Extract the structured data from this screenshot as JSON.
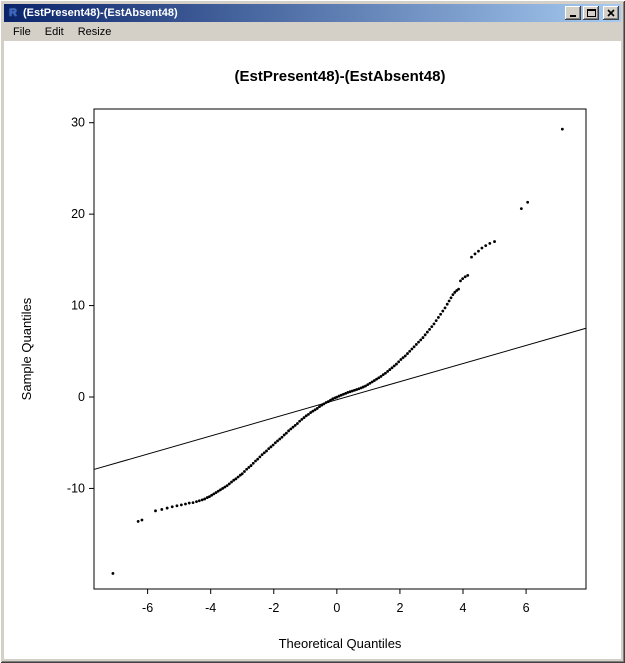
{
  "window": {
    "title": "(EstPresent48)-(EstAbsent48)",
    "icon_glyph": "R",
    "controls": [
      "minimize",
      "maximize",
      "close"
    ]
  },
  "menu": {
    "items": [
      {
        "label": "File"
      },
      {
        "label": "Edit"
      },
      {
        "label": "Resize"
      }
    ]
  },
  "colors": {
    "titlebar_gradient_start": "#0a246a",
    "titlebar_gradient_end": "#a6caf0",
    "window_chrome": "#d4d0c8",
    "plot_background": "#ffffff",
    "plot_foreground": "#000000"
  },
  "chart_data": {
    "type": "scatter",
    "title": "(EstPresent48)-(EstAbsent48)",
    "xlabel": "Theoretical Quantiles",
    "ylabel": "Sample Quantiles",
    "xlim": [
      -7.7,
      7.9
    ],
    "ylim": [
      -21,
      31.5
    ],
    "x_ticks": [
      -6,
      -4,
      -2,
      0,
      2,
      4,
      6
    ],
    "y_ticks": [
      -10,
      0,
      10,
      20,
      30
    ],
    "grid": false,
    "legend": null,
    "reference_line": {
      "slope": 0.99,
      "intercept": -0.3
    },
    "points": [
      [
        -7.1,
        -19.3
      ],
      [
        -6.3,
        -13.6
      ],
      [
        -6.18,
        -13.45
      ],
      [
        -5.75,
        -12.45
      ],
      [
        -5.55,
        -12.3
      ],
      [
        -5.38,
        -12.15
      ],
      [
        -5.22,
        -12.0
      ],
      [
        -5.07,
        -11.9
      ],
      [
        -4.93,
        -11.8
      ],
      [
        -4.8,
        -11.7
      ],
      [
        -4.68,
        -11.6
      ],
      [
        -4.56,
        -11.55
      ],
      [
        -4.45,
        -11.45
      ],
      [
        -4.36,
        -11.35
      ],
      [
        -4.27,
        -11.25
      ],
      [
        -4.19,
        -11.15
      ],
      [
        -4.11,
        -11.0
      ],
      [
        -4.04,
        -10.9
      ],
      [
        -3.97,
        -10.75
      ],
      [
        -3.9,
        -10.6
      ],
      [
        -3.83,
        -10.45
      ],
      [
        -3.76,
        -10.3
      ],
      [
        -3.69,
        -10.15
      ],
      [
        -3.62,
        -10.0
      ],
      [
        -3.55,
        -9.85
      ],
      [
        -3.48,
        -9.7
      ],
      [
        -3.41,
        -9.5
      ],
      [
        -3.34,
        -9.3
      ],
      [
        -3.27,
        -9.1
      ],
      [
        -3.2,
        -8.95
      ],
      [
        -3.13,
        -8.75
      ],
      [
        -3.06,
        -8.55
      ],
      [
        -3.0,
        -8.4
      ],
      [
        -2.93,
        -8.15
      ],
      [
        -2.86,
        -7.9
      ],
      [
        -2.79,
        -7.7
      ],
      [
        -2.72,
        -7.5
      ],
      [
        -2.65,
        -7.25
      ],
      [
        -2.58,
        -7.0
      ],
      [
        -2.51,
        -6.8
      ],
      [
        -2.44,
        -6.55
      ],
      [
        -2.37,
        -6.3
      ],
      [
        -2.3,
        -6.1
      ],
      [
        -2.23,
        -5.9
      ],
      [
        -2.16,
        -5.65
      ],
      [
        -2.09,
        -5.45
      ],
      [
        -2.02,
        -5.25
      ],
      [
        -1.95,
        -5.0
      ],
      [
        -1.88,
        -4.8
      ],
      [
        -1.81,
        -4.6
      ],
      [
        -1.74,
        -4.4
      ],
      [
        -1.67,
        -4.15
      ],
      [
        -1.6,
        -3.95
      ],
      [
        -1.53,
        -3.7
      ],
      [
        -1.46,
        -3.5
      ],
      [
        -1.39,
        -3.3
      ],
      [
        -1.32,
        -3.1
      ],
      [
        -1.25,
        -2.9
      ],
      [
        -1.18,
        -2.65
      ],
      [
        -1.11,
        -2.45
      ],
      [
        -1.04,
        -2.25
      ],
      [
        -0.97,
        -2.05
      ],
      [
        -0.9,
        -1.9
      ],
      [
        -0.83,
        -1.7
      ],
      [
        -0.76,
        -1.55
      ],
      [
        -0.69,
        -1.4
      ],
      [
        -0.62,
        -1.25
      ],
      [
        -0.55,
        -1.05
      ],
      [
        -0.48,
        -0.9
      ],
      [
        -0.41,
        -0.75
      ],
      [
        -0.34,
        -0.6
      ],
      [
        -0.27,
        -0.5
      ],
      [
        -0.2,
        -0.35
      ],
      [
        -0.13,
        -0.2
      ],
      [
        -0.06,
        -0.1
      ],
      [
        0.0,
        -0.02
      ],
      [
        0.07,
        0.1
      ],
      [
        0.14,
        0.2
      ],
      [
        0.21,
        0.3
      ],
      [
        0.28,
        0.4
      ],
      [
        0.35,
        0.5
      ],
      [
        0.42,
        0.58
      ],
      [
        0.49,
        0.66
      ],
      [
        0.56,
        0.74
      ],
      [
        0.63,
        0.82
      ],
      [
        0.7,
        0.9
      ],
      [
        0.77,
        1.0
      ],
      [
        0.84,
        1.1
      ],
      [
        0.91,
        1.2
      ],
      [
        0.98,
        1.35
      ],
      [
        1.05,
        1.5
      ],
      [
        1.12,
        1.65
      ],
      [
        1.19,
        1.8
      ],
      [
        1.26,
        1.95
      ],
      [
        1.33,
        2.1
      ],
      [
        1.4,
        2.25
      ],
      [
        1.47,
        2.45
      ],
      [
        1.54,
        2.6
      ],
      [
        1.61,
        2.8
      ],
      [
        1.68,
        3.0
      ],
      [
        1.75,
        3.2
      ],
      [
        1.82,
        3.4
      ],
      [
        1.89,
        3.6
      ],
      [
        1.96,
        3.85
      ],
      [
        2.03,
        4.1
      ],
      [
        2.1,
        4.3
      ],
      [
        2.17,
        4.5
      ],
      [
        2.24,
        4.75
      ],
      [
        2.31,
        5.0
      ],
      [
        2.38,
        5.25
      ],
      [
        2.45,
        5.5
      ],
      [
        2.52,
        5.75
      ],
      [
        2.59,
        6.0
      ],
      [
        2.66,
        6.25
      ],
      [
        2.73,
        6.5
      ],
      [
        2.8,
        6.8
      ],
      [
        2.87,
        7.1
      ],
      [
        2.94,
        7.4
      ],
      [
        3.01,
        7.7
      ],
      [
        3.08,
        8.0
      ],
      [
        3.15,
        8.35
      ],
      [
        3.22,
        8.7
      ],
      [
        3.29,
        9.05
      ],
      [
        3.36,
        9.4
      ],
      [
        3.43,
        9.75
      ],
      [
        3.5,
        10.15
      ],
      [
        3.56,
        10.5
      ],
      [
        3.62,
        10.85
      ],
      [
        3.68,
        11.2
      ],
      [
        3.74,
        11.45
      ],
      [
        3.8,
        11.65
      ],
      [
        3.86,
        11.8
      ],
      [
        3.92,
        12.7
      ],
      [
        3.99,
        12.95
      ],
      [
        4.07,
        13.15
      ],
      [
        4.15,
        13.3
      ],
      [
        4.27,
        15.3
      ],
      [
        4.38,
        15.65
      ],
      [
        4.49,
        15.95
      ],
      [
        4.6,
        16.3
      ],
      [
        4.72,
        16.55
      ],
      [
        4.85,
        16.8
      ],
      [
        5.0,
        17.0
      ],
      [
        5.85,
        20.6
      ],
      [
        6.05,
        21.3
      ],
      [
        7.15,
        29.3
      ]
    ]
  }
}
